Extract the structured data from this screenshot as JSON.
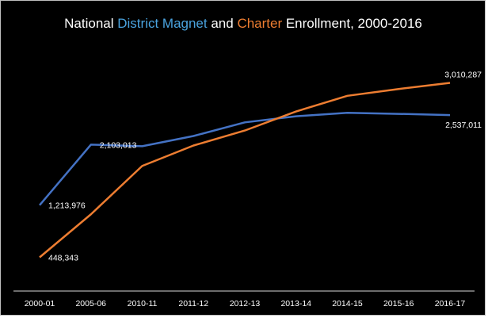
{
  "chart_data": {
    "type": "line",
    "title_parts": [
      {
        "text": "National ",
        "color": "#ffffff"
      },
      {
        "text": "District Magnet",
        "color": "#4aa3df"
      },
      {
        "text": " and ",
        "color": "#ffffff"
      },
      {
        "text": "Charter",
        "color": "#ed7d31"
      },
      {
        "text": " Enrollment, 2000-2016",
        "color": "#ffffff"
      }
    ],
    "categories": [
      "2000-01",
      "2005-06",
      "2010-11",
      "2011-12",
      "2012-13",
      "2013-14",
      "2014-15",
      "2015-16",
      "2016-17"
    ],
    "ylim": [
      0,
      3400000
    ],
    "grid": false,
    "series": [
      {
        "name": "District Magnet",
        "color": "#4472c4",
        "values": [
          1213976,
          2103013,
          2080000,
          2230000,
          2430000,
          2520000,
          2570000,
          2555000,
          2537011
        ]
      },
      {
        "name": "Charter",
        "color": "#ed7d31",
        "values": [
          448343,
          1080000,
          1790000,
          2090000,
          2310000,
          2590000,
          2820000,
          2920000,
          3010287
        ]
      }
    ],
    "data_labels": [
      {
        "series": 0,
        "index": 0,
        "text": "1,213,976"
      },
      {
        "series": 0,
        "index": 1,
        "text": "2,103,013"
      },
      {
        "series": 0,
        "index": 8,
        "text": "2,537,011"
      },
      {
        "series": 1,
        "index": 0,
        "text": "448,343"
      },
      {
        "series": 1,
        "index": 8,
        "text": "3,010,287"
      }
    ]
  }
}
